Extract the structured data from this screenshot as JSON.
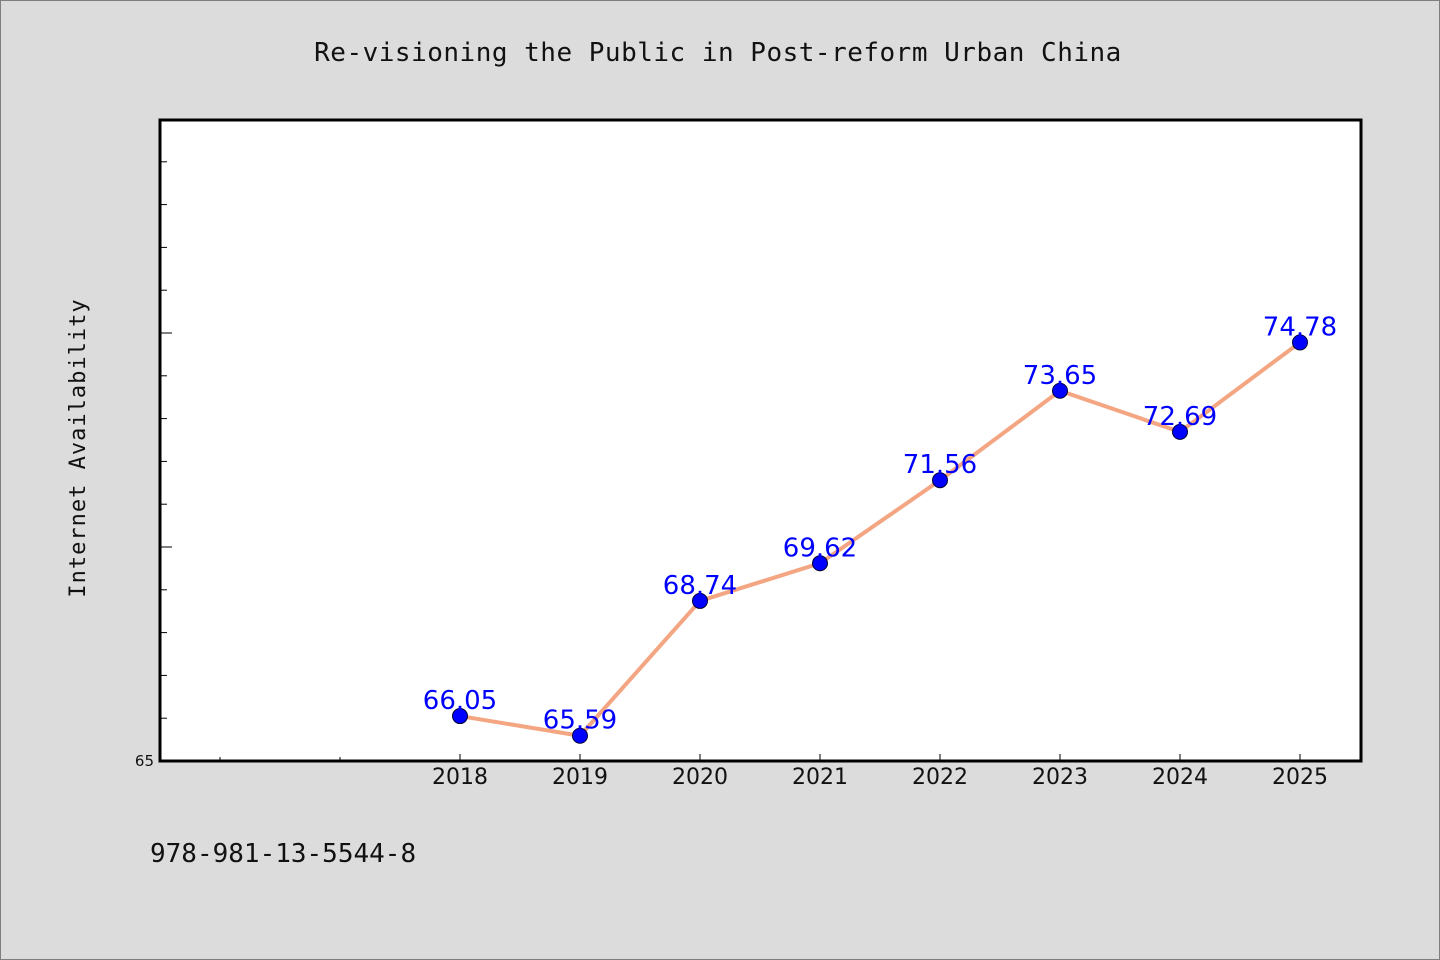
{
  "chart_data": {
    "type": "line",
    "title": "Re-visioning the Public in Post-reform Urban China",
    "xlabel": "",
    "ylabel": "Internet Availability",
    "categories": [
      "",
      "",
      "2018",
      "2019",
      "2020",
      "2021",
      "2022",
      "2023",
      "2024",
      "2025"
    ],
    "x": [
      "2018",
      "2019",
      "2020",
      "2021",
      "2022",
      "2023",
      "2024",
      "2025"
    ],
    "series": [
      {
        "values": [
          66.05,
          65.59,
          68.74,
          69.62,
          71.56,
          73.65,
          72.69,
          74.78
        ]
      }
    ],
    "data_labels": [
      "66.05",
      "65.59",
      "68.74",
      "69.62",
      "71.56",
      "73.65",
      "72.69",
      "74.78"
    ],
    "ylim": [
      65,
      80
    ],
    "ytick_labels": [
      "65"
    ],
    "grid": false,
    "line_color": "#f4a582",
    "marker_color": "#0000ff",
    "label_color": "#0000ff"
  },
  "footer": {
    "code": "978-981-13-5544-8"
  },
  "colors": {
    "background": "#dcdcdc",
    "plot_background": "#ffffff"
  }
}
